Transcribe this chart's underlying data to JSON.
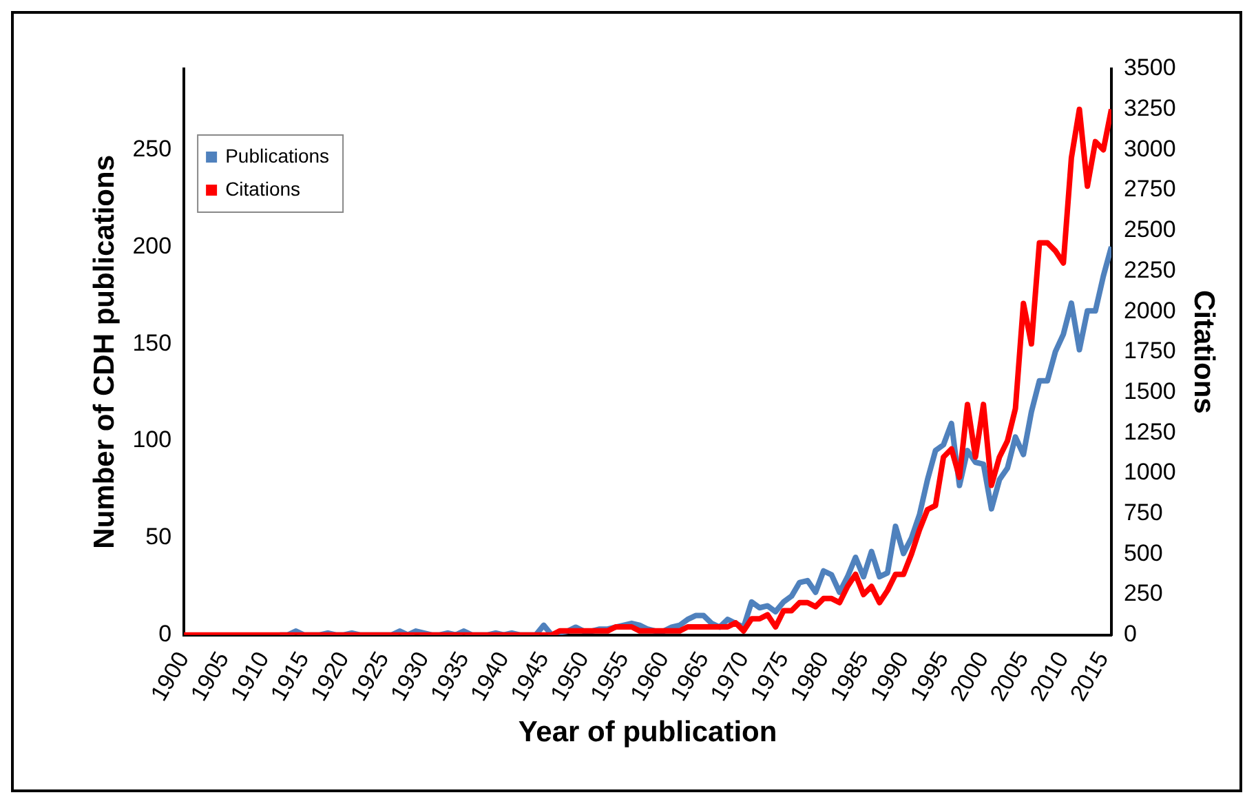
{
  "chart_data": {
    "type": "line",
    "xlabel": "Year of publication",
    "ylabel": "Number of CDH publications",
    "y2label": "Citations",
    "x": [
      1900,
      1901,
      1902,
      1903,
      1904,
      1905,
      1906,
      1907,
      1908,
      1909,
      1910,
      1911,
      1912,
      1913,
      1914,
      1915,
      1916,
      1917,
      1918,
      1919,
      1920,
      1921,
      1922,
      1923,
      1924,
      1925,
      1926,
      1927,
      1928,
      1929,
      1930,
      1931,
      1932,
      1933,
      1934,
      1935,
      1936,
      1937,
      1938,
      1939,
      1940,
      1941,
      1942,
      1943,
      1944,
      1945,
      1946,
      1947,
      1948,
      1949,
      1950,
      1951,
      1952,
      1953,
      1954,
      1955,
      1956,
      1957,
      1958,
      1959,
      1960,
      1961,
      1962,
      1963,
      1964,
      1965,
      1966,
      1967,
      1968,
      1969,
      1970,
      1971,
      1972,
      1973,
      1974,
      1975,
      1976,
      1977,
      1978,
      1979,
      1980,
      1981,
      1982,
      1983,
      1984,
      1985,
      1986,
      1987,
      1988,
      1989,
      1990,
      1991,
      1992,
      1993,
      1994,
      1995,
      1996,
      1997,
      1998,
      1999,
      2000,
      2001,
      2002,
      2003,
      2004,
      2005,
      2006,
      2007,
      2008,
      2009,
      2010,
      2011,
      2012,
      2013,
      2014,
      2015,
      2016
    ],
    "series": [
      {
        "name": "Publications",
        "color": "#4f81bd",
        "values": [
          null,
          null,
          null,
          null,
          null,
          null,
          null,
          null,
          null,
          null,
          null,
          null,
          0,
          0,
          2,
          0,
          0,
          0,
          1,
          0,
          0,
          1,
          0,
          0,
          0,
          0,
          0,
          2,
          0,
          2,
          1,
          0,
          0,
          1,
          0,
          2,
          0,
          0,
          0,
          1,
          0,
          1,
          0,
          0,
          0,
          5,
          0,
          1,
          2,
          4,
          2,
          2,
          3,
          3,
          4,
          5,
          6,
          5,
          3,
          2,
          2,
          4,
          5,
          8,
          10,
          10,
          6,
          4,
          8,
          6,
          4,
          17,
          14,
          15,
          12,
          17,
          20,
          27,
          28,
          22,
          33,
          31,
          22,
          30,
          40,
          30,
          43,
          30,
          32,
          56,
          42,
          50,
          62,
          80,
          95,
          98,
          109,
          77,
          95,
          89,
          88,
          65,
          80,
          86,
          102,
          93,
          115,
          131,
          131,
          146,
          155,
          171,
          147,
          167,
          167,
          185,
          200
        ]
      },
      {
        "name": "Citations",
        "color": "#ff0000",
        "axis": "y2",
        "values": [
          0,
          0,
          0,
          0,
          0,
          0,
          0,
          0,
          0,
          0,
          0,
          0,
          0,
          0,
          0,
          0,
          0,
          0,
          0,
          0,
          0,
          0,
          0,
          0,
          0,
          0,
          0,
          0,
          0,
          0,
          0,
          0,
          0,
          0,
          0,
          0,
          0,
          0,
          0,
          0,
          0,
          0,
          0,
          0,
          0,
          0,
          0,
          25,
          25,
          25,
          25,
          25,
          25,
          25,
          50,
          50,
          50,
          25,
          25,
          25,
          25,
          25,
          25,
          50,
          50,
          50,
          50,
          50,
          50,
          75,
          25,
          100,
          100,
          125,
          50,
          150,
          150,
          200,
          200,
          175,
          225,
          225,
          200,
          300,
          375,
          250,
          300,
          200,
          275,
          375,
          375,
          500,
          650,
          775,
          800,
          1100,
          1150,
          975,
          1425,
          1100,
          1425,
          925,
          1100,
          1200,
          1400,
          2050,
          1800,
          2425,
          2425,
          2375,
          2300,
          2950,
          3250,
          2775,
          3050,
          3000,
          3250
        ]
      }
    ],
    "xlim": [
      1900,
      2016
    ],
    "xticks": [
      1900,
      1905,
      1910,
      1915,
      1920,
      1925,
      1930,
      1935,
      1940,
      1945,
      1950,
      1955,
      1960,
      1965,
      1970,
      1975,
      1980,
      1985,
      1990,
      1995,
      2000,
      2005,
      2010,
      2015
    ],
    "ylim": [
      0,
      291.7
    ],
    "yticks": [
      0,
      50,
      100,
      150,
      200,
      250
    ],
    "y2lim": [
      0,
      3500
    ],
    "y2ticks": [
      0,
      250,
      500,
      750,
      1000,
      1250,
      1500,
      1750,
      2000,
      2250,
      2500,
      2750,
      3000,
      3250,
      3500
    ],
    "grid": false,
    "legend": "top left"
  }
}
